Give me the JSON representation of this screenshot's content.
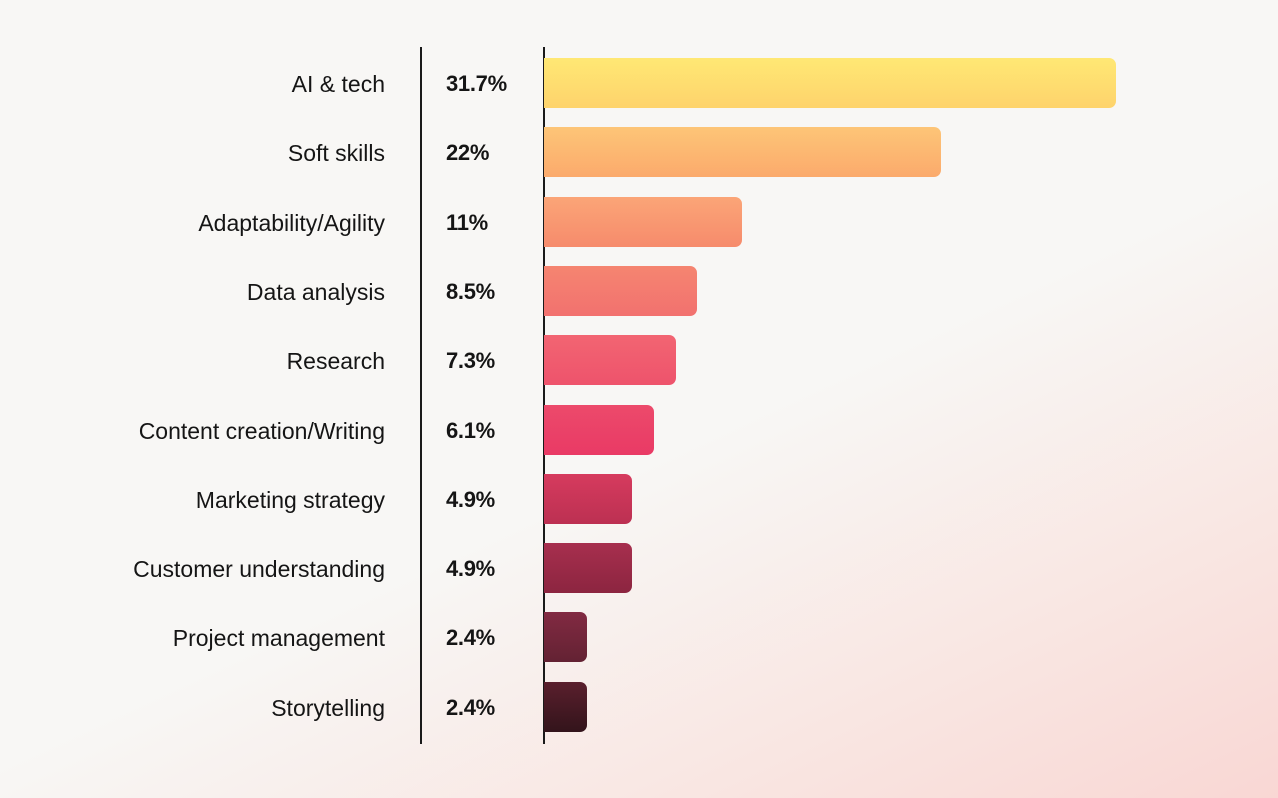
{
  "chart_data": {
    "type": "bar",
    "orientation": "horizontal",
    "title": "",
    "xlabel": "",
    "ylabel": "",
    "categories": [
      "AI & tech",
      "Soft skills",
      "Adaptability/Agility",
      "Data analysis",
      "Research",
      "Content creation/Writing",
      "Marketing strategy",
      "Customer understanding",
      "Project management",
      "Storytelling"
    ],
    "values": [
      31.7,
      22,
      11,
      8.5,
      7.3,
      6.1,
      4.9,
      4.9,
      2.4,
      2.4
    ],
    "value_labels": [
      "31.7%",
      "22%",
      "11%",
      "8.5%",
      "7.3%",
      "6.1%",
      "4.9%",
      "4.9%",
      "2.4%",
      "2.4%"
    ],
    "unit": "%",
    "grid": false,
    "legend": null,
    "xlim": [
      0,
      31.7
    ]
  },
  "bars": [
    {
      "label": "AI & tech",
      "value": "31.7%",
      "pct": 31.7,
      "color_top": "#ffe874",
      "color_bottom": "#fed36c"
    },
    {
      "label": "Soft skills",
      "value": "22%",
      "pct": 22,
      "color_top": "#fdc577",
      "color_bottom": "#fbaa6c"
    },
    {
      "label": "Adaptability/Agility",
      "value": "11%",
      "pct": 11,
      "color_top": "#fba577",
      "color_bottom": "#f68b6c"
    },
    {
      "label": "Data analysis",
      "value": "8.5%",
      "pct": 8.5,
      "color_top": "#f58570",
      "color_bottom": "#f2716f"
    },
    {
      "label": "Research",
      "value": "7.3%",
      "pct": 7.3,
      "color_top": "#f26572",
      "color_bottom": "#ee536c"
    },
    {
      "label": "Content creation/Writing",
      "value": "6.1%",
      "pct": 6.1,
      "color_top": "#ec4a6b",
      "color_bottom": "#e93a65"
    },
    {
      "label": "Marketing strategy",
      "value": "4.9%",
      "pct": 4.9,
      "color_top": "#d63b5e",
      "color_bottom": "#bc3052"
    },
    {
      "label": "Customer understanding",
      "value": "4.9%",
      "pct": 4.9,
      "color_top": "#a72f4e",
      "color_bottom": "#8c2540"
    },
    {
      "label": "Project management",
      "value": "2.4%",
      "pct": 2.4,
      "color_top": "#822a42",
      "color_bottom": "#632233"
    },
    {
      "label": "Storytelling",
      "value": "2.4%",
      "pct": 2.4,
      "color_top": "#5a1f2d",
      "color_bottom": "#33141b"
    }
  ]
}
